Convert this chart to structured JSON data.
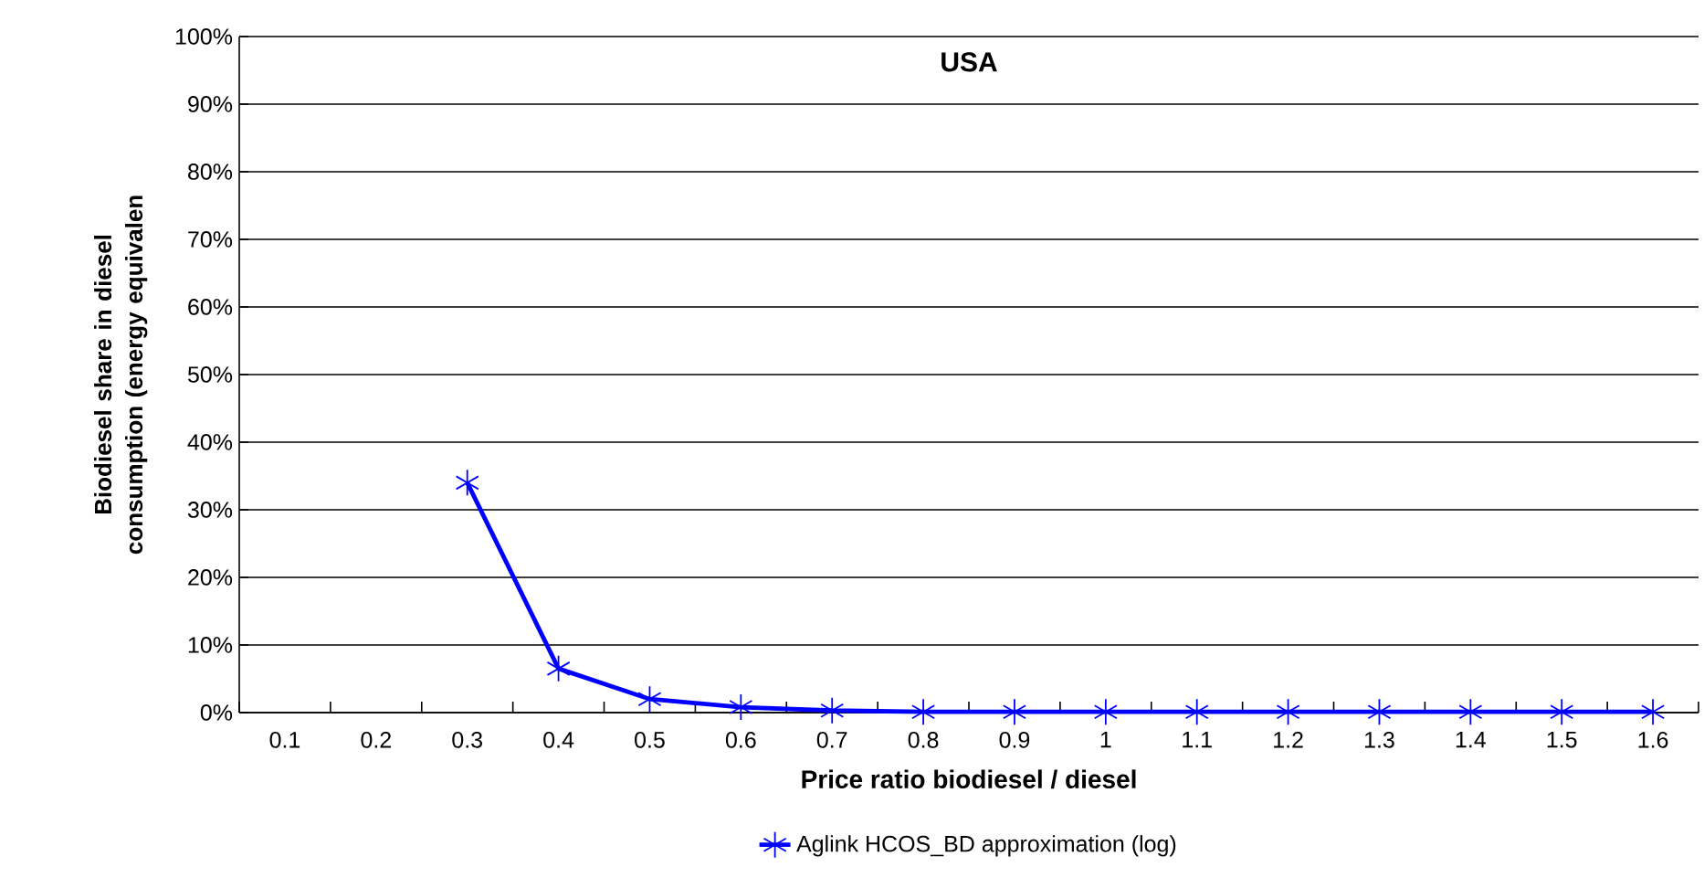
{
  "chart_data": {
    "type": "line",
    "title": "USA",
    "xlabel": "Price ratio biodiesel / diesel",
    "ylabel": "Biodiesel share in diesel consumption (energy equivalen",
    "categories": [
      "0.1",
      "0.2",
      "0.3",
      "0.4",
      "0.5",
      "0.6",
      "0.7",
      "0.8",
      "0.9",
      "1",
      "1.1",
      "1.2",
      "1.3",
      "1.4",
      "1.5",
      "1.6"
    ],
    "series": [
      {
        "name": "Aglink HCOS_BD approximation (log)",
        "color": "#0000ff",
        "values": [
          null,
          null,
          34,
          6.5,
          2,
          0.8,
          0.3,
          0.1,
          0.1,
          0.1,
          0.1,
          0.1,
          0.1,
          0.1,
          0.1,
          0.1
        ]
      }
    ],
    "ylim": [
      0,
      100
    ],
    "yticks": [
      {
        "value": 0,
        "label": "0%"
      },
      {
        "value": 10,
        "label": "10%"
      },
      {
        "value": 20,
        "label": "20%"
      },
      {
        "value": 30,
        "label": "30%"
      },
      {
        "value": 40,
        "label": "40%"
      },
      {
        "value": 50,
        "label": "50%"
      },
      {
        "value": 60,
        "label": "60%"
      },
      {
        "value": 70,
        "label": "70%"
      },
      {
        "value": 80,
        "label": "80%"
      },
      {
        "value": 90,
        "label": "90%"
      },
      {
        "value": 100,
        "label": "100%"
      }
    ],
    "grid": "y",
    "legend": "bottom",
    "marker": "cross",
    "line_style": "solid"
  }
}
